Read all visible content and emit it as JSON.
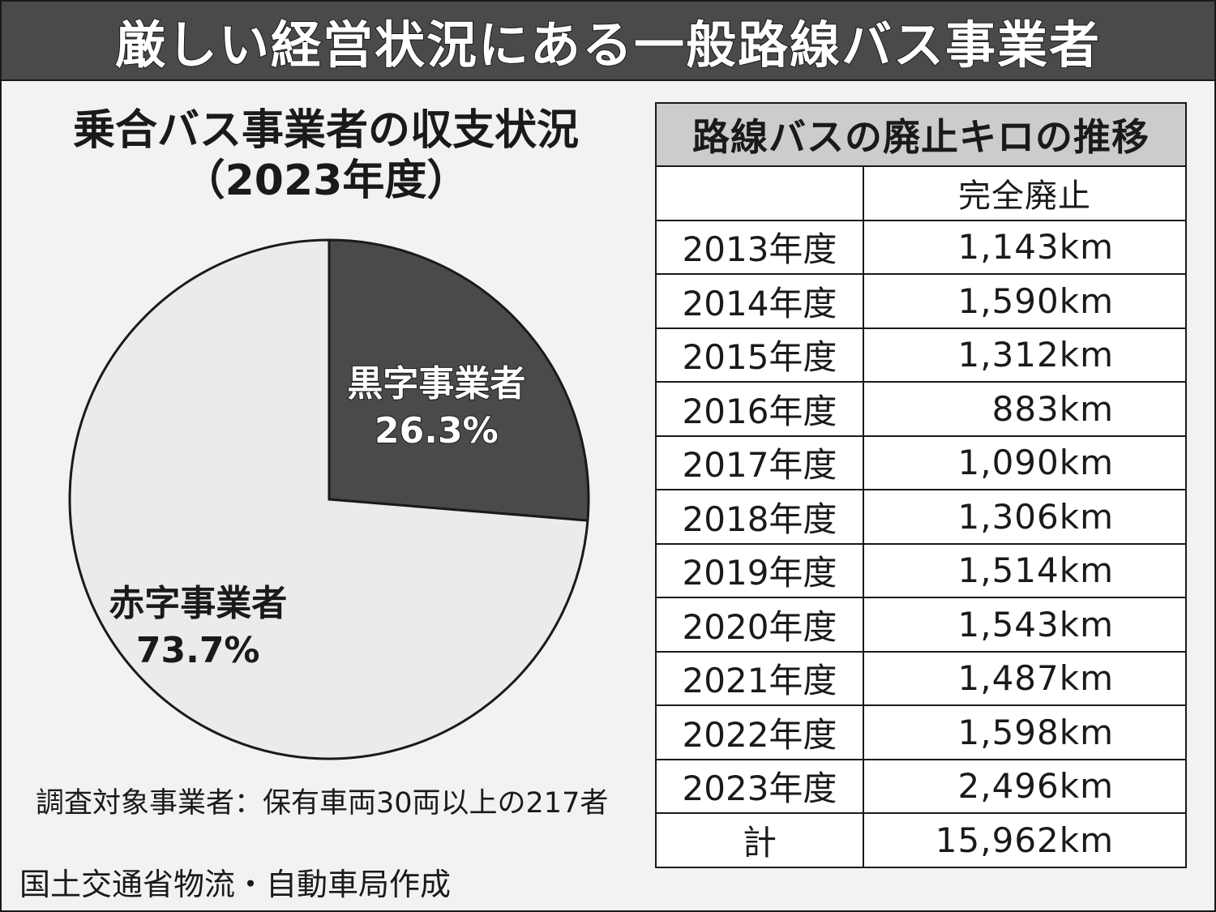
{
  "header": {
    "title": "厳しい経営状況にある一般路線バス事業者"
  },
  "pie": {
    "title_line1": "乗合バス事業者の収支状況",
    "title_line2": "（2023年度）",
    "note": "調査対象事業者：保有車両30両以上の217者"
  },
  "source": "国土交通省物流・自動車局作成",
  "table": {
    "title": "路線バスの廃止キロの推移",
    "col_header": "完全廃止",
    "rows": [
      {
        "year": "2013年度",
        "value": "1,143km"
      },
      {
        "year": "2014年度",
        "value": "1,590km"
      },
      {
        "year": "2015年度",
        "value": "1,312km"
      },
      {
        "year": "2016年度",
        "value": "883km"
      },
      {
        "year": "2017年度",
        "value": "1,090km"
      },
      {
        "year": "2018年度",
        "value": "1,306km"
      },
      {
        "year": "2019年度",
        "value": "1,514km"
      },
      {
        "year": "2020年度",
        "value": "1,543km"
      },
      {
        "year": "2021年度",
        "value": "1,487km"
      },
      {
        "year": "2022年度",
        "value": "1,598km"
      },
      {
        "year": "2023年度",
        "value": "2,496km"
      }
    ],
    "total": {
      "label": "計",
      "value": "15,962km"
    }
  },
  "colors": {
    "black_slice": "#4a4a4a",
    "red_slice": "#ebebeb",
    "frame": "#1a1a1a"
  },
  "chart_data": [
    {
      "type": "pie",
      "title": "乗合バス事業者の収支状況（2023年度）",
      "slices": [
        {
          "label": "黒字事業者",
          "value": 26.3,
          "display": "26.3%"
        },
        {
          "label": "赤字事業者",
          "value": 73.7,
          "display": "73.7%"
        }
      ],
      "unit": "%"
    },
    {
      "type": "table",
      "title": "路線バスの廃止キロの推移",
      "columns": [
        "",
        "完全廃止"
      ],
      "categories": [
        "2013年度",
        "2014年度",
        "2015年度",
        "2016年度",
        "2017年度",
        "2018年度",
        "2019年度",
        "2020年度",
        "2021年度",
        "2022年度",
        "2023年度"
      ],
      "values": [
        1143,
        1590,
        1312,
        883,
        1090,
        1306,
        1514,
        1543,
        1487,
        1598,
        2496
      ],
      "total": 15962,
      "unit": "km"
    }
  ]
}
